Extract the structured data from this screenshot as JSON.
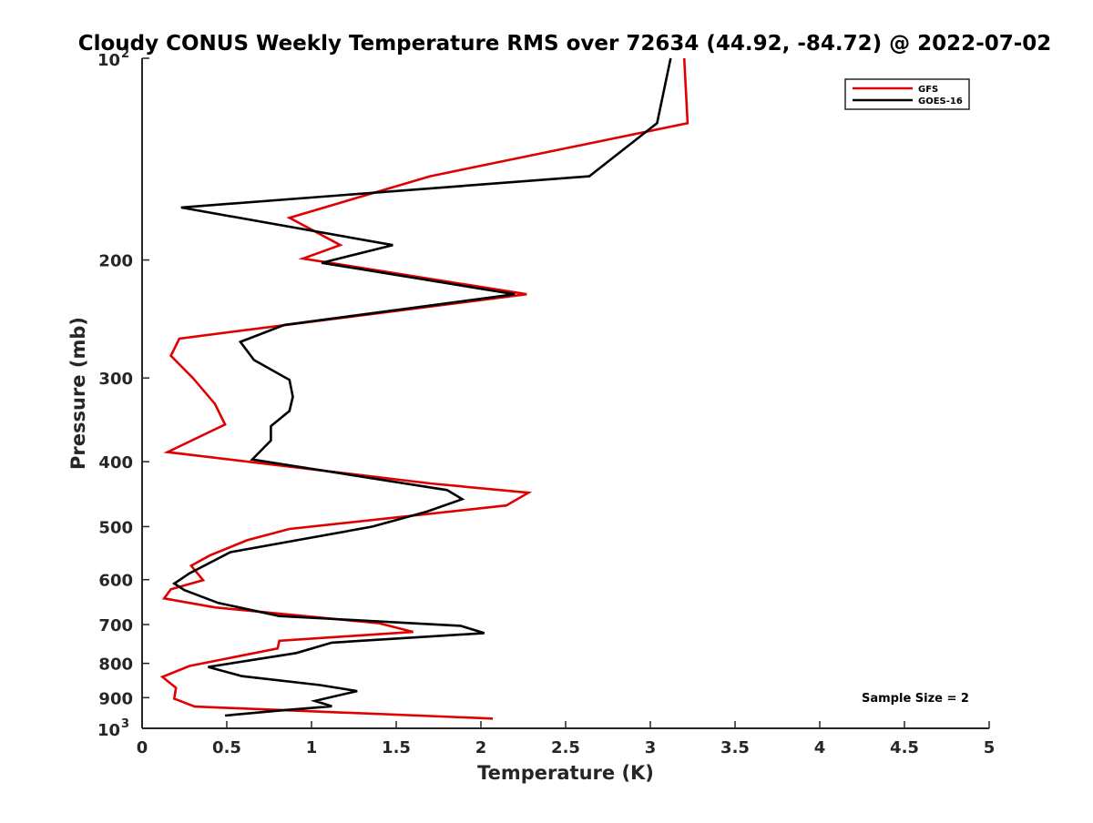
{
  "chart_data": {
    "type": "line",
    "title": "Cloudy CONUS Weekly Temperature RMS over 72634 (44.92, -84.72) @ 2022-07-02",
    "xlabel": "Temperature (K)",
    "ylabel": "Pressure (mb)",
    "xlim": [
      0,
      5
    ],
    "ylim": [
      100,
      1000
    ],
    "y_scale": "log",
    "y_reversed": true,
    "grid": false,
    "legend_position": "top-right",
    "x_ticks": [
      {
        "value": 0,
        "label": "0"
      },
      {
        "value": 0.5,
        "label": "0.5"
      },
      {
        "value": 1,
        "label": "1"
      },
      {
        "value": 1.5,
        "label": "1.5"
      },
      {
        "value": 2,
        "label": "2"
      },
      {
        "value": 2.5,
        "label": "2.5"
      },
      {
        "value": 3,
        "label": "3"
      },
      {
        "value": 3.5,
        "label": "3.5"
      },
      {
        "value": 4,
        "label": "4"
      },
      {
        "value": 4.5,
        "label": "4.5"
      },
      {
        "value": 5,
        "label": "5"
      }
    ],
    "y_ticks": [
      {
        "value": 200,
        "label": "200"
      },
      {
        "value": 300,
        "label": "300"
      },
      {
        "value": 400,
        "label": "400"
      },
      {
        "value": 500,
        "label": "500"
      },
      {
        "value": 600,
        "label": "600"
      },
      {
        "value": 700,
        "label": "700"
      },
      {
        "value": 800,
        "label": "800"
      },
      {
        "value": 900,
        "label": "900"
      }
    ],
    "y_ticks_pow": [
      {
        "value": 100,
        "base": "10",
        "exp": "2"
      },
      {
        "value": 1000,
        "base": "10",
        "exp": "3"
      }
    ],
    "annotation": "Sample Size = 2",
    "series": [
      {
        "name": "GFS",
        "color": "#e00000",
        "points": [
          [
            3.2,
            100
          ],
          [
            3.22,
            125
          ],
          [
            1.7,
            150
          ],
          [
            0.87,
            173
          ],
          [
            1.17,
            190
          ],
          [
            0.95,
            199
          ],
          [
            2.27,
            225
          ],
          [
            0.22,
            262
          ],
          [
            0.17,
            278
          ],
          [
            0.3,
            300
          ],
          [
            0.43,
            328
          ],
          [
            0.49,
            352
          ],
          [
            0.15,
            387
          ],
          [
            1.7,
            431
          ],
          [
            2.28,
            445
          ],
          [
            2.15,
            465
          ],
          [
            0.87,
            504
          ],
          [
            0.62,
            524
          ],
          [
            0.4,
            552
          ],
          [
            0.29,
            572
          ],
          [
            0.36,
            601
          ],
          [
            0.17,
            620
          ],
          [
            0.13,
            640
          ],
          [
            0.43,
            660
          ],
          [
            1.4,
            697
          ],
          [
            1.6,
            718
          ],
          [
            0.81,
            740
          ],
          [
            0.8,
            760
          ],
          [
            0.28,
            807
          ],
          [
            0.12,
            838
          ],
          [
            0.2,
            870
          ],
          [
            0.19,
            903
          ],
          [
            0.31,
            928
          ],
          [
            2.07,
            967
          ]
        ]
      },
      {
        "name": "GOES-16",
        "color": "#000000",
        "points": [
          [
            3.12,
            100
          ],
          [
            3.04,
            125
          ],
          [
            2.64,
            150
          ],
          [
            0.23,
            167
          ],
          [
            1.48,
            190
          ],
          [
            1.06,
            202
          ],
          [
            2.2,
            225
          ],
          [
            0.84,
            250
          ],
          [
            0.58,
            265
          ],
          [
            0.66,
            282
          ],
          [
            0.87,
            302
          ],
          [
            0.89,
            320
          ],
          [
            0.87,
            336
          ],
          [
            0.76,
            354
          ],
          [
            0.76,
            372
          ],
          [
            0.65,
            397
          ],
          [
            1.8,
            441
          ],
          [
            1.89,
            455
          ],
          [
            1.68,
            475
          ],
          [
            1.36,
            500
          ],
          [
            0.52,
            546
          ],
          [
            0.28,
            587
          ],
          [
            0.19,
            608
          ],
          [
            0.25,
            622
          ],
          [
            0.45,
            650
          ],
          [
            0.81,
            680
          ],
          [
            1.88,
            703
          ],
          [
            2.02,
            721
          ],
          [
            1.12,
            745
          ],
          [
            0.91,
            772
          ],
          [
            0.39,
            810
          ],
          [
            0.59,
            836
          ],
          [
            1.05,
            862
          ],
          [
            1.27,
            880
          ],
          [
            1.02,
            910
          ],
          [
            1.12,
            927
          ],
          [
            0.83,
            940
          ],
          [
            0.49,
            957
          ]
        ]
      }
    ]
  }
}
